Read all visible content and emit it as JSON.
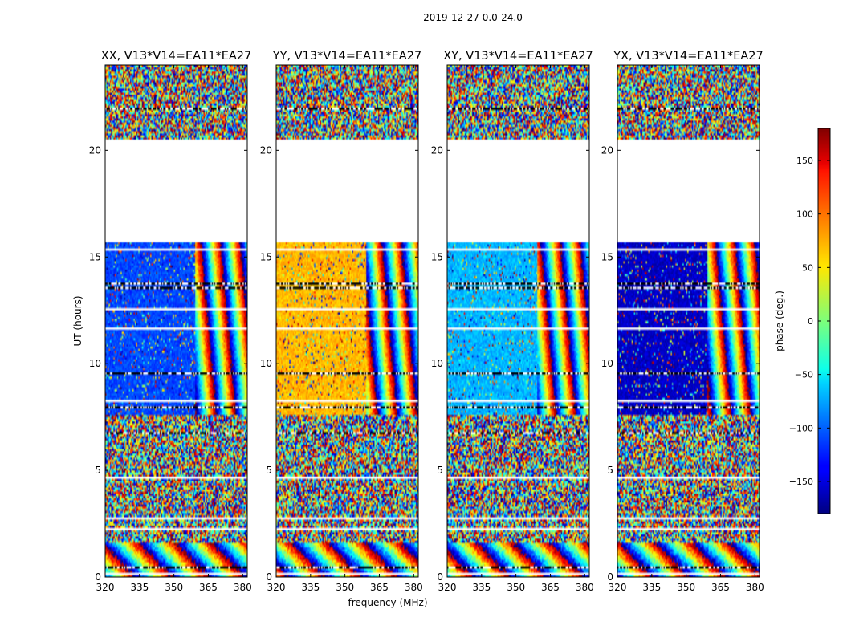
{
  "figure_title": "2019-12-27 0.0-24.0",
  "colorbar": {
    "label": "phase (deg.)",
    "ticks": [
      150,
      100,
      50,
      0,
      -50,
      -100,
      -150
    ],
    "tick_labels": [
      "150",
      "100",
      "50",
      "0",
      "−50",
      "−100",
      "−150"
    ],
    "range": [
      -180,
      180
    ]
  },
  "chart_data": [
    {
      "type": "heatmap",
      "title": "XX, V13*V14=EA11*EA27",
      "xlabel": "",
      "ylabel": "UT (hours)",
      "xlim": [
        320,
        382
      ],
      "ylim": [
        0,
        24
      ],
      "xticks": [
        320,
        335,
        350,
        365,
        380
      ],
      "yticks": [
        0,
        5,
        10,
        15,
        20
      ],
      "z_units": "phase (deg.)",
      "base_phase_deg": -110,
      "gaps_ut_hours": [
        [
          15.7,
          20.5
        ]
      ]
    },
    {
      "type": "heatmap",
      "title": "YY, V13*V14=EA11*EA27",
      "xlabel": "frequency (MHz)",
      "ylabel": "",
      "xlim": [
        320,
        382
      ],
      "ylim": [
        0,
        24
      ],
      "xticks": [
        320,
        335,
        350,
        365,
        380
      ],
      "yticks": [
        0,
        5,
        10,
        15,
        20
      ],
      "z_units": "phase (deg.)",
      "base_phase_deg": 70,
      "gaps_ut_hours": [
        [
          15.7,
          20.5
        ]
      ]
    },
    {
      "type": "heatmap",
      "title": "XY, V13*V14=EA11*EA27",
      "xlabel": "",
      "ylabel": "",
      "xlim": [
        320,
        382
      ],
      "ylim": [
        0,
        24
      ],
      "xticks": [
        320,
        335,
        350,
        365,
        380
      ],
      "yticks": [
        0,
        5,
        10,
        15,
        20
      ],
      "z_units": "phase (deg.)",
      "base_phase_deg": -70,
      "gaps_ut_hours": [
        [
          15.7,
          20.5
        ]
      ]
    },
    {
      "type": "heatmap",
      "title": "YX, V13*V14=EA11*EA27",
      "xlabel": "",
      "ylabel": "",
      "xlim": [
        320,
        382
      ],
      "ylim": [
        0,
        24
      ],
      "xticks": [
        320,
        335,
        350,
        365,
        380
      ],
      "yticks": [
        0,
        5,
        10,
        15,
        20
      ],
      "z_units": "phase (deg.)",
      "base_phase_deg": -155,
      "gaps_ut_hours": [
        [
          15.7,
          20.5
        ]
      ]
    }
  ]
}
